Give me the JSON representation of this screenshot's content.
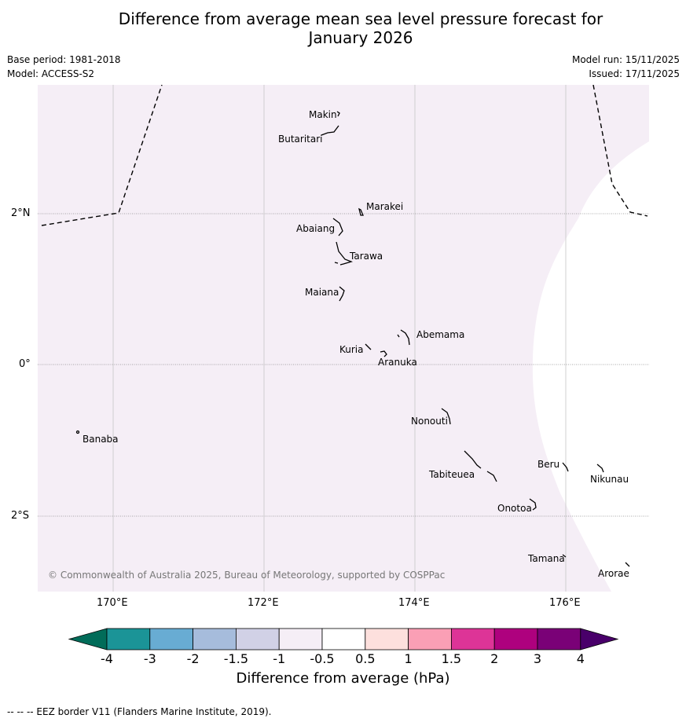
{
  "title_line1": "Difference from average mean sea level pressure forecast for",
  "title_line2": "January 2026",
  "meta": {
    "base_period": "Base period: 1981-2018",
    "model": "Model: ACCESS-S2",
    "model_run": "Model run: 15/11/2025",
    "issued": "Issued: 17/11/2025"
  },
  "map": {
    "copyright": "© Commonwealth of Australia 2025, Bureau of Meteorology, supported by COSPPac",
    "lat_labels": [
      "2°N",
      "0°",
      "2°S"
    ],
    "lon_labels": [
      "170°E",
      "172°E",
      "174°E",
      "176°E"
    ],
    "places": [
      "Makin",
      "Butaritari",
      "Marakei",
      "Abaiang",
      "Tarawa",
      "Maiana",
      "Abemama",
      "Kuria",
      "Aranuka",
      "Nonouti",
      "Banaba",
      "Beru",
      "Nikunau",
      "Tabiteuea",
      "Onotoa",
      "Tamana",
      "Arorae"
    ],
    "shading_color": "#f5eef6",
    "background_color": "#ffffff"
  },
  "colorbar": {
    "ticks": [
      "-4",
      "-3",
      "-2",
      "-1.5",
      "-1",
      "-0.5",
      "0.5",
      "1",
      "1.5",
      "2",
      "3",
      "4"
    ],
    "colors": [
      "#1b9497",
      "#68acd3",
      "#a6bcdc",
      "#d1d1e6",
      "#f5eef6",
      "#ffffff",
      "#fde0dd",
      "#fa9fb5",
      "#dd3497",
      "#ae017e",
      "#7a0177"
    ],
    "low_extend_color": "#016c59",
    "high_extend_color": "#49006a",
    "label": "Difference from average (hPa)"
  },
  "footer": "--  --  -- EEZ border V11 (Flanders Marine Institute, 2019)."
}
